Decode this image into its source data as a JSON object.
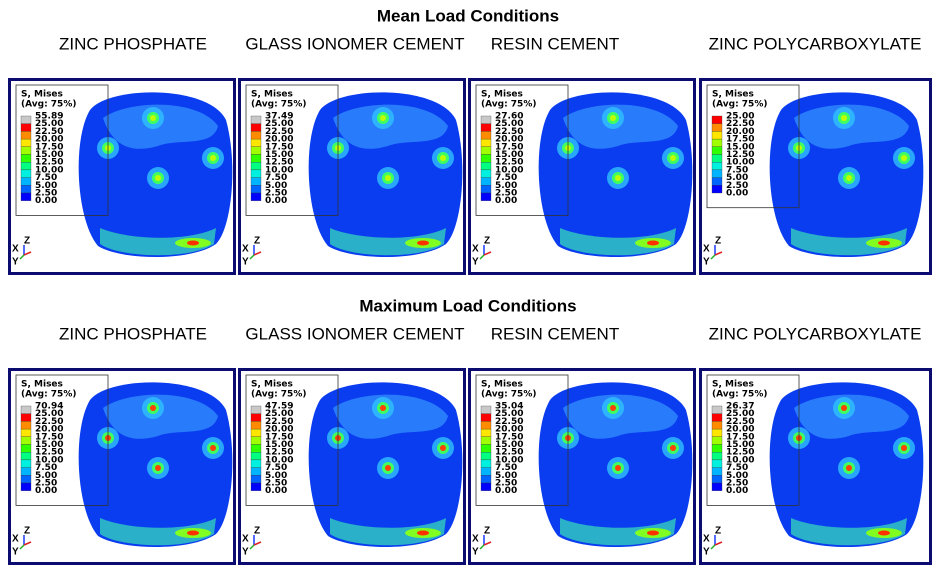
{
  "sections": [
    {
      "title": "Mean Load Conditions",
      "panels": [
        {
          "label": "ZINC PHOSPHATE",
          "legend_title": "S, Mises",
          "legend_subtitle": "(Avg: 75%)",
          "legend_values": [
            "55.89",
            "25.00",
            "22.50",
            "20.00",
            "17.50",
            "15.00",
            "12.50",
            "10.00",
            "7.50",
            "5.00",
            "2.50",
            "0.00"
          ]
        },
        {
          "label": "GLASS IONOMER CEMENT",
          "legend_title": "S, Mises",
          "legend_subtitle": "(Avg: 75%)",
          "legend_values": [
            "37.49",
            "25.00",
            "22.50",
            "20.00",
            "17.50",
            "15.00",
            "12.50",
            "10.00",
            "7.50",
            "5.00",
            "2.50",
            "0.00"
          ]
        },
        {
          "label": "RESIN CEMENT",
          "legend_title": "S, Mises",
          "legend_subtitle": "(Avg: 75%)",
          "legend_values": [
            "27.60",
            "25.00",
            "22.50",
            "20.00",
            "17.50",
            "15.00",
            "12.50",
            "10.00",
            "7.50",
            "5.00",
            "2.50",
            "0.00"
          ]
        },
        {
          "label": "ZINC POLYCARBOXYLATE",
          "legend_title": "S, Mises",
          "legend_subtitle": "(Avg: 75%)",
          "legend_values": [
            "25.00",
            "22.50",
            "20.00",
            "17.50",
            "15.00",
            "12.50",
            "10.00",
            "7.50",
            "5.00",
            "2.50",
            "0.00"
          ]
        }
      ]
    },
    {
      "title": "Maximum Load Conditions",
      "panels": [
        {
          "label": "ZINC PHOSPHATE",
          "legend_title": "S, Mises",
          "legend_subtitle": "(Avg: 75%)",
          "legend_values": [
            "70.94",
            "25.00",
            "22.50",
            "20.00",
            "17.50",
            "15.00",
            "12.50",
            "10.00",
            "7.50",
            "5.00",
            "2.50",
            "0.00"
          ]
        },
        {
          "label": "GLASS IONOMER CEMENT",
          "legend_title": "S, Mises",
          "legend_subtitle": "(Avg: 75%)",
          "legend_values": [
            "47.59",
            "25.00",
            "22.50",
            "20.00",
            "17.50",
            "15.00",
            "12.50",
            "10.00",
            "7.50",
            "5.00",
            "2.50",
            "0.00"
          ]
        },
        {
          "label": "RESIN CEMENT",
          "legend_title": "S, Mises",
          "legend_subtitle": "(Avg: 75%)",
          "legend_values": [
            "35.04",
            "25.00",
            "22.50",
            "20.00",
            "17.50",
            "15.00",
            "12.50",
            "10.00",
            "7.50",
            "5.00",
            "2.50",
            "0.00"
          ]
        },
        {
          "label": "ZINC POLYCARBOXYLATE",
          "legend_title": "S, Mises",
          "legend_subtitle": "(Avg: 75%)",
          "legend_values": [
            "26.37",
            "25.00",
            "22.50",
            "20.00",
            "17.50",
            "15.00",
            "12.50",
            "10.00",
            "7.50",
            "5.00",
            "2.50",
            "0.00"
          ]
        }
      ]
    }
  ],
  "triad": {
    "x": "X",
    "y": "Y",
    "z": "Z"
  }
}
